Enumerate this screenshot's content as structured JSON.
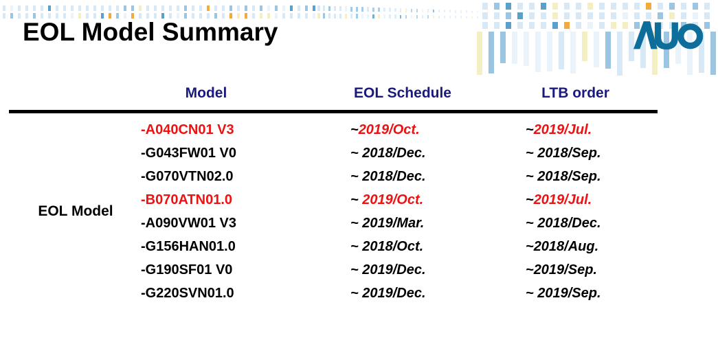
{
  "title": "EOL Model Summary",
  "logo": {
    "text": "AUO"
  },
  "table": {
    "row_label": "EOL Model",
    "columns": [
      "Model",
      "EOL Schedule",
      "LTB order"
    ],
    "rows": [
      {
        "model": "-A040CN01 V3",
        "schedule": "~2019/Oct.",
        "ltb": "~2019/Jul.",
        "highlight": true
      },
      {
        "model": "-G043FW01 V0",
        "schedule": "~ 2018/Dec.",
        "ltb": "~ 2018/Sep.",
        "highlight": false
      },
      {
        "model": "-G070VTN02.0",
        "schedule": "~ 2018/Dec.",
        "ltb": "~ 2018/Sep.",
        "highlight": false
      },
      {
        "model": "-B070ATN01.0",
        "schedule": "~ 2019/Oct.",
        "ltb": "~2019/Jul.",
        "highlight": true
      },
      {
        "model": "-A090VW01 V3",
        "schedule": "~ 2019/Mar.",
        "ltb": "~ 2018/Dec.",
        "highlight": false
      },
      {
        "model": "-G156HAN01.0",
        "schedule": "~ 2018/Oct.",
        "ltb": "~2018/Aug.",
        "highlight": false
      },
      {
        "model": "-G190SF01 V0",
        "schedule": "~ 2019/Dec.",
        "ltb": "~2019/Sep.",
        "highlight": false
      },
      {
        "model": "-G220SVN01.0",
        "schedule": "~ 2019/Dec.",
        "ltb": "~ 2019/Sep.",
        "highlight": false
      }
    ]
  },
  "colors": {
    "highlight_red": "#ee1111",
    "header_navy": "#1a1a7e",
    "body_black": "#000000",
    "rule_black": "#000000",
    "logo_teal": "#0d6e9c",
    "decor": {
      "light": "#d7e9f6",
      "mid": "#9cc5e2",
      "deep": "#5b9fcb",
      "yellow": "#f4eec3",
      "orange": "#f2a93d",
      "ghost": "#eaf3fa"
    }
  }
}
